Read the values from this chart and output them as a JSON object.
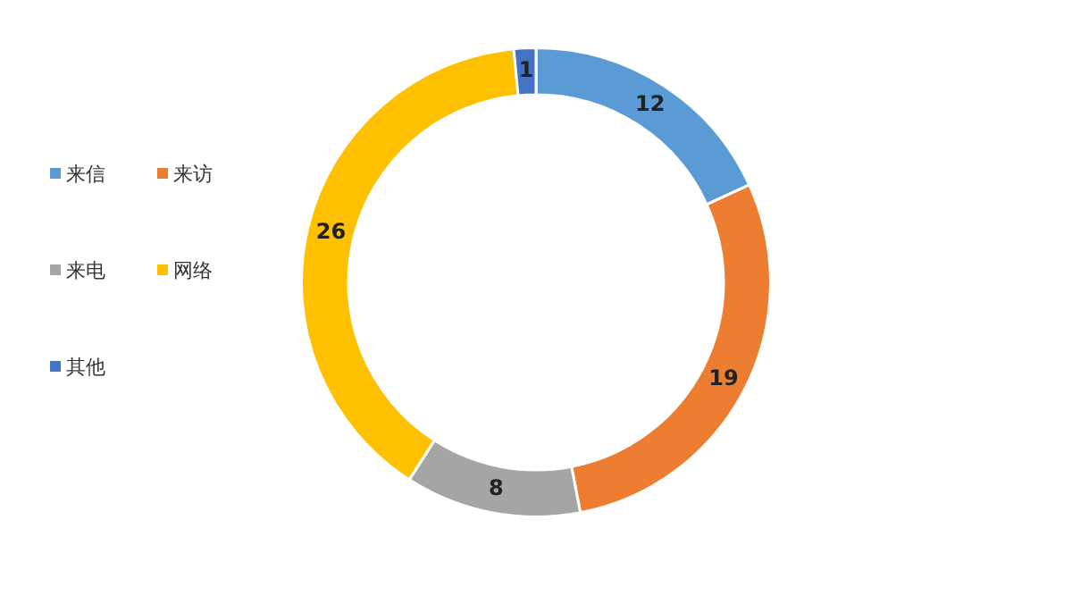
{
  "chart_data": {
    "type": "donut",
    "categories": [
      "来信",
      "来访",
      "来电",
      "网络",
      "其他"
    ],
    "values": [
      12,
      19,
      8,
      26,
      1
    ],
    "colors": [
      "#5b9bd5",
      "#ed7d31",
      "#a5a5a5",
      "#ffc000",
      "#4472c4"
    ],
    "data_labels": true,
    "legend": "left"
  }
}
